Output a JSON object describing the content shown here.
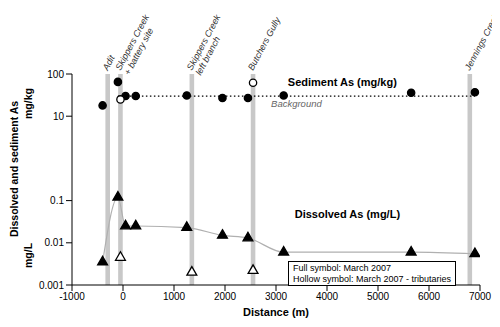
{
  "chart_data": {
    "type": "scatter",
    "x_label": "Distance (m)",
    "y_label": "Dissolved and sediment As",
    "y_units": [
      "mg/kg",
      "mg/L"
    ],
    "xlim": [
      -1000,
      7000
    ],
    "xticks": [
      -1000,
      0,
      1000,
      2000,
      3000,
      4000,
      5000,
      6000,
      7000
    ],
    "ylim": [
      0.001,
      100
    ],
    "yticks": [
      0.001,
      0.01,
      0.1,
      10,
      100
    ],
    "log": "y",
    "grid": false,
    "series": [
      {
        "name": "Sediment As (mg/kg)",
        "color": "#000000",
        "marker": "circle",
        "x": [
          -400,
          -100,
          50,
          250,
          1250,
          1950,
          2450,
          3150,
          5650,
          6900
        ],
        "values": [
          18,
          65,
          30,
          30,
          31,
          27,
          27,
          31,
          36,
          37
        ]
      },
      {
        "color": "#000000",
        "marker": "circle-open",
        "x": [
          -50,
          2550
        ],
        "values": [
          25,
          62
        ]
      },
      {
        "name": "Dissolved As (mg/L)",
        "color": "#000000",
        "marker": "triangle",
        "line_style": "smooth",
        "x": [
          -400,
          -100,
          50,
          250,
          1250,
          1950,
          2450,
          3150,
          5650,
          6900
        ],
        "values": [
          0.0035,
          0.12,
          0.025,
          0.025,
          0.023,
          0.015,
          0.013,
          0.006,
          0.006,
          0.0055
        ]
      },
      {
        "color": "#000000",
        "marker": "triangle-open",
        "x": [
          -50,
          1350,
          2550
        ],
        "values": [
          0.0045,
          0.002,
          0.0022
        ]
      }
    ],
    "sites": [
      {
        "x": -300,
        "label": "Adit"
      },
      {
        "x": -50,
        "label": "Skippers Creek + battery site"
      },
      {
        "x": 1350,
        "label": "Skippers Creek left branch"
      },
      {
        "x": 2550,
        "label": "Butchers Gully"
      },
      {
        "x": 6800,
        "label": "Jennings Creek"
      }
    ],
    "reference_lines": [
      {
        "y": 30,
        "x": [
          -100,
          6900
        ],
        "label": "Background",
        "line_style": "dotted"
      }
    ],
    "annotations": [
      "Full symbol: March 2007",
      "Hollow symbol: March 2007 - tributaries"
    ]
  }
}
